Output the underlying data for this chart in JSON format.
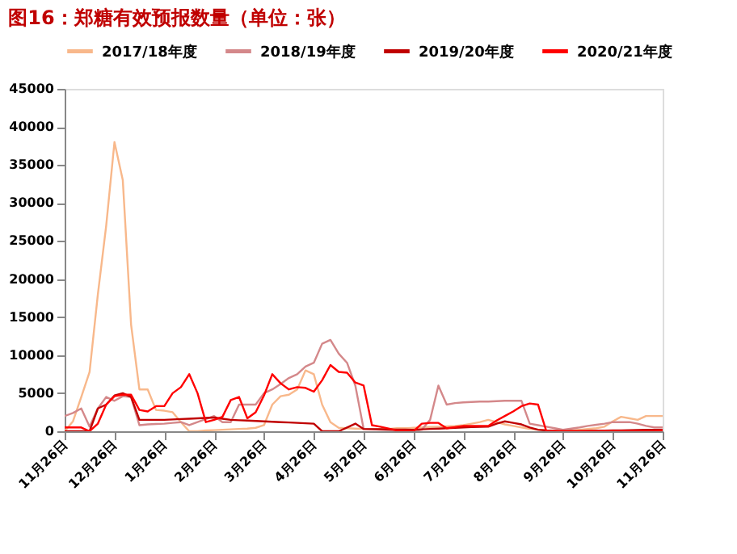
{
  "chart_data": {
    "type": "line",
    "title": "图16：郑糖有效预报数量（单位：张）",
    "categories": [
      "11月26日",
      null,
      null,
      null,
      null,
      null,
      "12月26日",
      null,
      null,
      null,
      null,
      null,
      "1月26日",
      null,
      null,
      null,
      null,
      null,
      "2月26日",
      null,
      null,
      null,
      null,
      null,
      "3月26日",
      null,
      null,
      null,
      null,
      null,
      "4月26日",
      null,
      null,
      null,
      null,
      null,
      "5月26日",
      null,
      null,
      null,
      null,
      null,
      "6月26日",
      null,
      null,
      null,
      null,
      null,
      "7月26日",
      null,
      null,
      null,
      null,
      null,
      "8月26日",
      null,
      null,
      null,
      null,
      null,
      "9月26日",
      null,
      null,
      null,
      null,
      null,
      "10月26日",
      null,
      null,
      null,
      null,
      null,
      "11月26日"
    ],
    "ylim": [
      0,
      45000
    ],
    "yticks": [
      0,
      5000,
      10000,
      15000,
      20000,
      25000,
      30000,
      35000,
      40000,
      45000
    ],
    "grid": false,
    "legend": "top",
    "marker": "none",
    "line_style": "solid",
    "series": [
      {
        "name": "2017/18年度",
        "color": "#f8b88b",
        "values": [
          0,
          1300,
          4500,
          7800,
          18000,
          27000,
          38000,
          33000,
          14000,
          5500,
          5500,
          2800,
          2700,
          2500,
          1200,
          0,
          0,
          100,
          150,
          200,
          250,
          300,
          350,
          450,
          800,
          3500,
          4600,
          4800,
          5500,
          8000,
          7500,
          3500,
          1200,
          450,
          400,
          350,
          300,
          300,
          300,
          300,
          400,
          400,
          450,
          500,
          550,
          600,
          650,
          700,
          800,
          1000,
          1200,
          1500,
          1200,
          900,
          700,
          500,
          300,
          200,
          100,
          50,
          0,
          100,
          200,
          300,
          400,
          600,
          1300,
          1900,
          1700,
          1500,
          2000,
          2000,
          2000
        ]
      },
      {
        "name": "2018/19年度",
        "color": "#d4888a",
        "values": [
          2000,
          2400,
          3000,
          600,
          3000,
          4500,
          4000,
          4600,
          4500,
          800,
          900,
          950,
          1000,
          1100,
          1200,
          800,
          1200,
          1600,
          2000,
          1200,
          1200,
          3500,
          3500,
          3500,
          5000,
          5500,
          6200,
          7000,
          7500,
          8500,
          9000,
          11500,
          12000,
          10200,
          9000,
          6000,
          300,
          250,
          200,
          150,
          100,
          50,
          0,
          200,
          1500,
          6000,
          3500,
          3700,
          3800,
          3850,
          3900,
          3900,
          3950,
          4000,
          4000,
          4000,
          1000,
          800,
          600,
          400,
          200,
          350,
          500,
          700,
          850,
          1000,
          1200,
          1200,
          1200,
          1000,
          700,
          500,
          500
        ]
      },
      {
        "name": "2019/20年度",
        "color": "#c00000",
        "values": [
          0,
          0,
          0,
          0,
          3000,
          3500,
          4700,
          5000,
          4500,
          1500,
          1500,
          1500,
          1500,
          1550,
          1600,
          1650,
          1700,
          1750,
          1800,
          1650,
          1500,
          1450,
          1400,
          1350,
          1300,
          1250,
          1200,
          1150,
          1100,
          1050,
          1000,
          0,
          0,
          0,
          500,
          1000,
          300,
          280,
          260,
          240,
          220,
          210,
          200,
          250,
          300,
          350,
          400,
          450,
          500,
          550,
          580,
          600,
          1000,
          1300,
          1100,
          900,
          500,
          200,
          100,
          50,
          0,
          20,
          40,
          60,
          80,
          90,
          100,
          120,
          140,
          160,
          180,
          190,
          200
        ]
      },
      {
        "name": "2020/21年度",
        "color": "#ff0000",
        "values": [
          500,
          500,
          500,
          0,
          1000,
          3500,
          4600,
          4800,
          4800,
          2800,
          2600,
          3300,
          3300,
          5000,
          5800,
          7500,
          5000,
          1200,
          1500,
          1900,
          4100,
          4500,
          1700,
          2500,
          4700,
          7500,
          6300,
          5500,
          5800,
          5700,
          5200,
          6700,
          8700,
          7800,
          7700,
          6400,
          6000,
          800,
          600,
          350,
          100,
          50,
          0,
          1000,
          1100,
          1100,
          400,
          550,
          700,
          700,
          700,
          700,
          1400,
          2000,
          2600,
          3300,
          3650,
          3500,
          0,
          0,
          0,
          0,
          0,
          0,
          0,
          0,
          0,
          0,
          0,
          0,
          0,
          0,
          100
        ]
      }
    ]
  }
}
